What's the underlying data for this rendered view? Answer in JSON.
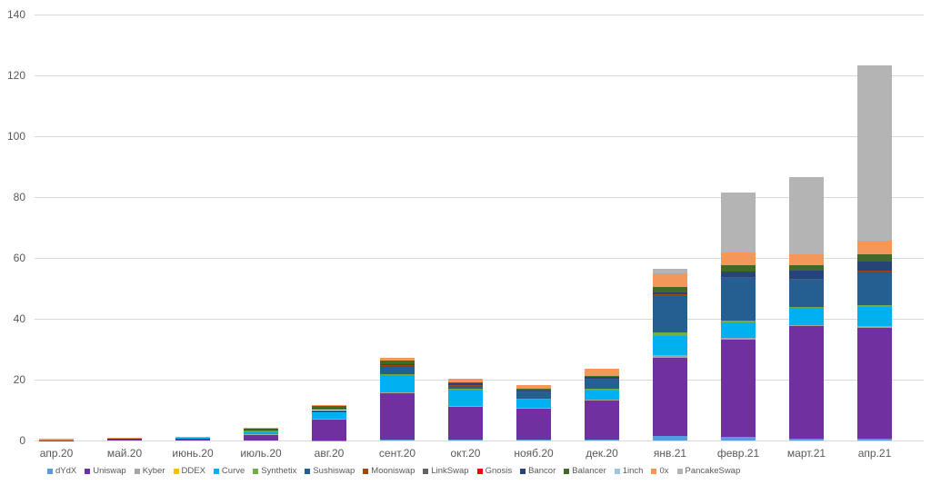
{
  "chart_data": {
    "type": "bar",
    "stacked": true,
    "title": "",
    "xlabel": "",
    "ylabel": "",
    "ylim": [
      0,
      140
    ],
    "yticks": [
      0,
      20,
      40,
      60,
      80,
      100,
      120,
      140
    ],
    "grid": true,
    "legend_position": "bottom",
    "categories": [
      "апр.20",
      "май.20",
      "июнь.20",
      "июль.20",
      "авг.20",
      "сент.20",
      "окт.20",
      "нояб.20",
      "дек.20",
      "янв.21",
      "февр.21",
      "март.21",
      "апр.21"
    ],
    "series": [
      {
        "name": "dYdX",
        "color": "#5b9bd5",
        "values": [
          0,
          0,
          0,
          0,
          0.1,
          0.2,
          0.2,
          0.2,
          0.3,
          1.4,
          1.3,
          0.5,
          0.5
        ]
      },
      {
        "name": "Uniswap",
        "color": "#7030a0",
        "values": [
          0.1,
          0.5,
          0.8,
          1.8,
          6.8,
          15.4,
          10.9,
          10.1,
          12.8,
          25.7,
          31.8,
          37.0,
          36.4
        ]
      },
      {
        "name": "Kyber",
        "color": "#a5a5a5",
        "values": [
          0,
          0,
          0,
          0.2,
          0.3,
          0.3,
          0.3,
          0.3,
          0.3,
          0.9,
          0.7,
          0.5,
          0.6
        ]
      },
      {
        "name": "DDEX",
        "color": "#ffc000",
        "values": [
          0,
          0,
          0,
          0,
          0,
          0,
          0,
          0,
          0,
          0,
          0,
          0,
          0
        ]
      },
      {
        "name": "Curve",
        "color": "#00b0f0",
        "values": [
          0,
          0.1,
          0.2,
          1.3,
          2.2,
          5.8,
          5.3,
          2.9,
          2.9,
          6.2,
          5.0,
          5.5,
          6.5
        ]
      },
      {
        "name": "Synthetix",
        "color": "#70ad47",
        "values": [
          0,
          0,
          0,
          0.1,
          0.2,
          0.2,
          0.2,
          0.2,
          0.6,
          1.2,
          0.5,
          0.3,
          0.4
        ]
      },
      {
        "name": "Sushiswap",
        "color": "#255e91",
        "values": [
          0,
          0,
          0,
          0,
          0,
          2.7,
          1.2,
          2.3,
          3.4,
          12.5,
          14.2,
          9.2,
          11.2
        ]
      },
      {
        "name": "Mooniswap",
        "color": "#9e480e",
        "values": [
          0,
          0,
          0,
          0,
          0.1,
          0.1,
          0.1,
          0.1,
          0.1,
          0.1,
          0.1,
          0.1,
          0.1
        ]
      },
      {
        "name": "LinkSwap",
        "color": "#636363",
        "values": [
          0,
          0,
          0,
          0,
          0,
          0,
          0,
          0,
          0,
          0,
          0,
          0,
          0
        ]
      },
      {
        "name": "Gnosis",
        "color": "#ff0000",
        "values": [
          0,
          0,
          0,
          0,
          0,
          0,
          0,
          0,
          0,
          0,
          0,
          0,
          0
        ]
      },
      {
        "name": "Bancor",
        "color": "#264478",
        "values": [
          0,
          0.1,
          0.1,
          0.2,
          0.3,
          0.4,
          0.5,
          0.4,
          0.4,
          0.8,
          1.9,
          2.6,
          3.1
        ]
      },
      {
        "name": "Balancer",
        "color": "#43682b",
        "values": [
          0,
          0.1,
          0.1,
          0.4,
          1.3,
          1.2,
          0.3,
          0.4,
          0.4,
          1.6,
          2.1,
          2.0,
          2.4
        ]
      },
      {
        "name": "1inch",
        "color": "#9dc3e6",
        "values": [
          0,
          0,
          0,
          0,
          0,
          0,
          0,
          0,
          0,
          0,
          0,
          0,
          0
        ]
      },
      {
        "name": "0x",
        "color": "#f4975a",
        "values": [
          0.4,
          0.1,
          0.1,
          0.2,
          0.4,
          0.8,
          1.2,
          1.2,
          2.4,
          4.5,
          4.1,
          3.6,
          4.4
        ]
      },
      {
        "name": "PancakeSwap",
        "color": "#b4b4b4",
        "values": [
          0,
          0,
          0,
          0,
          0,
          0,
          0,
          0,
          0,
          1.6,
          19.9,
          25.2,
          57.7
        ]
      }
    ]
  }
}
